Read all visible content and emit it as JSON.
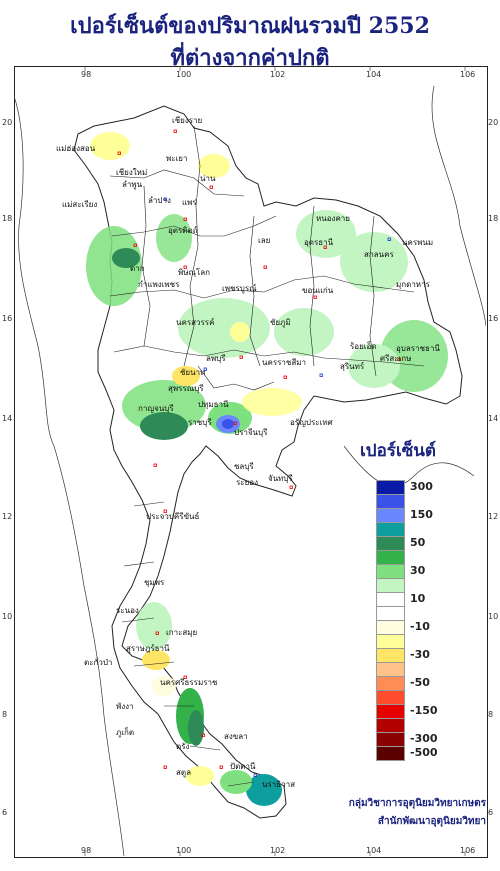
{
  "title": {
    "line1": "เปอร์เซ็นต์ของปริมาณฝนรวมปี  2552",
    "line2": "ที่ต่างจากค่าปกติ"
  },
  "axes": {
    "lon_ticks": [
      "98",
      "100",
      "102",
      "104",
      "106"
    ],
    "lat_ticks": [
      "20",
      "18",
      "16",
      "14",
      "12",
      "10",
      "8",
      "6"
    ]
  },
  "legend": {
    "title": "เปอร์เซ็นต์",
    "items": [
      {
        "label": "300",
        "color": "#0a1aa8"
      },
      {
        "label": "",
        "color": "#3a52e8"
      },
      {
        "label": "150",
        "color": "#6b87ff"
      },
      {
        "label": "",
        "color": "#0e9e9e"
      },
      {
        "label": "50",
        "color": "#2e8b57"
      },
      {
        "label": "",
        "color": "#33b24a"
      },
      {
        "label": "30",
        "color": "#7ee07e"
      },
      {
        "label": "",
        "color": "#c2f5c2"
      },
      {
        "label": "10",
        "color": "#ffffff"
      },
      {
        "label": "",
        "color": "#ffffff"
      },
      {
        "label": "-10",
        "color": "#fffde0"
      },
      {
        "label": "",
        "color": "#ffff99"
      },
      {
        "label": "-30",
        "color": "#ffe566"
      },
      {
        "label": "",
        "color": "#ffc38a"
      },
      {
        "label": "-50",
        "color": "#ff8c55"
      },
      {
        "label": "",
        "color": "#ff4d2e"
      },
      {
        "label": "-150",
        "color": "#e60000"
      },
      {
        "label": "",
        "color": "#b30000"
      },
      {
        "label": "-300",
        "color": "#8b0000"
      },
      {
        "label": "-500",
        "color": "#5a0000"
      }
    ]
  },
  "credit": {
    "line1": "กลุ่มวิชาการอุตุนิยมวิทยาเกษตร",
    "line2": "สำนักพัฒนาอุตุนิยมวิทยา"
  },
  "places": [
    {
      "name": "เชียงราย"
    },
    {
      "name": "แม่ฮ่องสอน"
    },
    {
      "name": "เชียงใหม่"
    },
    {
      "name": "ลำพูน"
    },
    {
      "name": "พะเยา"
    },
    {
      "name": "น่าน"
    },
    {
      "name": "ลำปาง"
    },
    {
      "name": "แพร่"
    },
    {
      "name": "แม่สะเรียง"
    },
    {
      "name": "อุตรดิตถ์"
    },
    {
      "name": "ตาก"
    },
    {
      "name": "พิษณุโลก"
    },
    {
      "name": "กำแพงเพชร"
    },
    {
      "name": "เพชรบูรณ์"
    },
    {
      "name": "เลย"
    },
    {
      "name": "หนองคาย"
    },
    {
      "name": "อุดรธานี"
    },
    {
      "name": "สกลนคร"
    },
    {
      "name": "นครพนม"
    },
    {
      "name": "มุกดาหาร"
    },
    {
      "name": "ขอนแก่น"
    },
    {
      "name": "นครสวรรค์"
    },
    {
      "name": "ชัยภูมิ"
    },
    {
      "name": "ร้อยเอ็ด"
    },
    {
      "name": "อุบลราชธานี"
    },
    {
      "name": "ลพบุรี"
    },
    {
      "name": "นครราชสีมา"
    },
    {
      "name": "ชัยนาท"
    },
    {
      "name": "สุรินทร์"
    },
    {
      "name": "ศรีสะเกษ"
    },
    {
      "name": "สุพรรณบุรี"
    },
    {
      "name": "กาญจนบุรี"
    },
    {
      "name": "ปทุมธานี"
    },
    {
      "name": "ราชบุรี"
    },
    {
      "name": "ปราจีนบุรี"
    },
    {
      "name": "อรัญประเทศ"
    },
    {
      "name": "ชลบุรี"
    },
    {
      "name": "ระยอง"
    },
    {
      "name": "จันทบุรี"
    },
    {
      "name": "ประจวบคีรีขันธ์"
    },
    {
      "name": "ชุมพร"
    },
    {
      "name": "ระนอง"
    },
    {
      "name": "เกาะสมุย"
    },
    {
      "name": "สุราษฎร์ธานี"
    },
    {
      "name": "ตะกั่วป่า"
    },
    {
      "name": "นครศรีธรรมราช"
    },
    {
      "name": "พังงา"
    },
    {
      "name": "ภูเก็ต"
    },
    {
      "name": "ตรัง"
    },
    {
      "name": "สงขลา"
    },
    {
      "name": "สตูล"
    },
    {
      "name": "ปัตตานี"
    },
    {
      "name": "นราธิวาส"
    }
  ]
}
